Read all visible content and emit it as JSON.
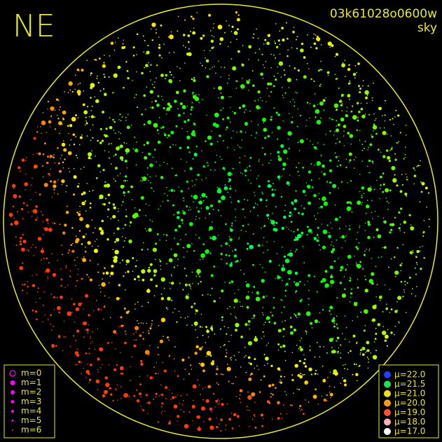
{
  "corner_label": "NE",
  "image_id": "03k61028o0600w",
  "image_type": "sky",
  "magnitude_legend": [
    {
      "label": "m=0"
    },
    {
      "label": "m=1"
    },
    {
      "label": "m=2"
    },
    {
      "label": "m=3"
    },
    {
      "label": "m=4"
    },
    {
      "label": "m=5"
    },
    {
      "label": "m=6"
    }
  ],
  "magnitude_color": "#ff00ff",
  "sky_brightness_legend": [
    {
      "label": "μ=22.0",
      "color": "#2040ff"
    },
    {
      "label": "μ=21.5",
      "color": "#20e060"
    },
    {
      "label": "μ=21.0",
      "color": "#e8e020"
    },
    {
      "label": "μ=20.0",
      "color": "#ff9a10"
    },
    {
      "label": "μ=19.0",
      "color": "#ff5030"
    },
    {
      "label": "μ=18.0",
      "color": "#ffb0b0"
    },
    {
      "label": "μ=17.0",
      "color": "#ffffff"
    }
  ]
}
